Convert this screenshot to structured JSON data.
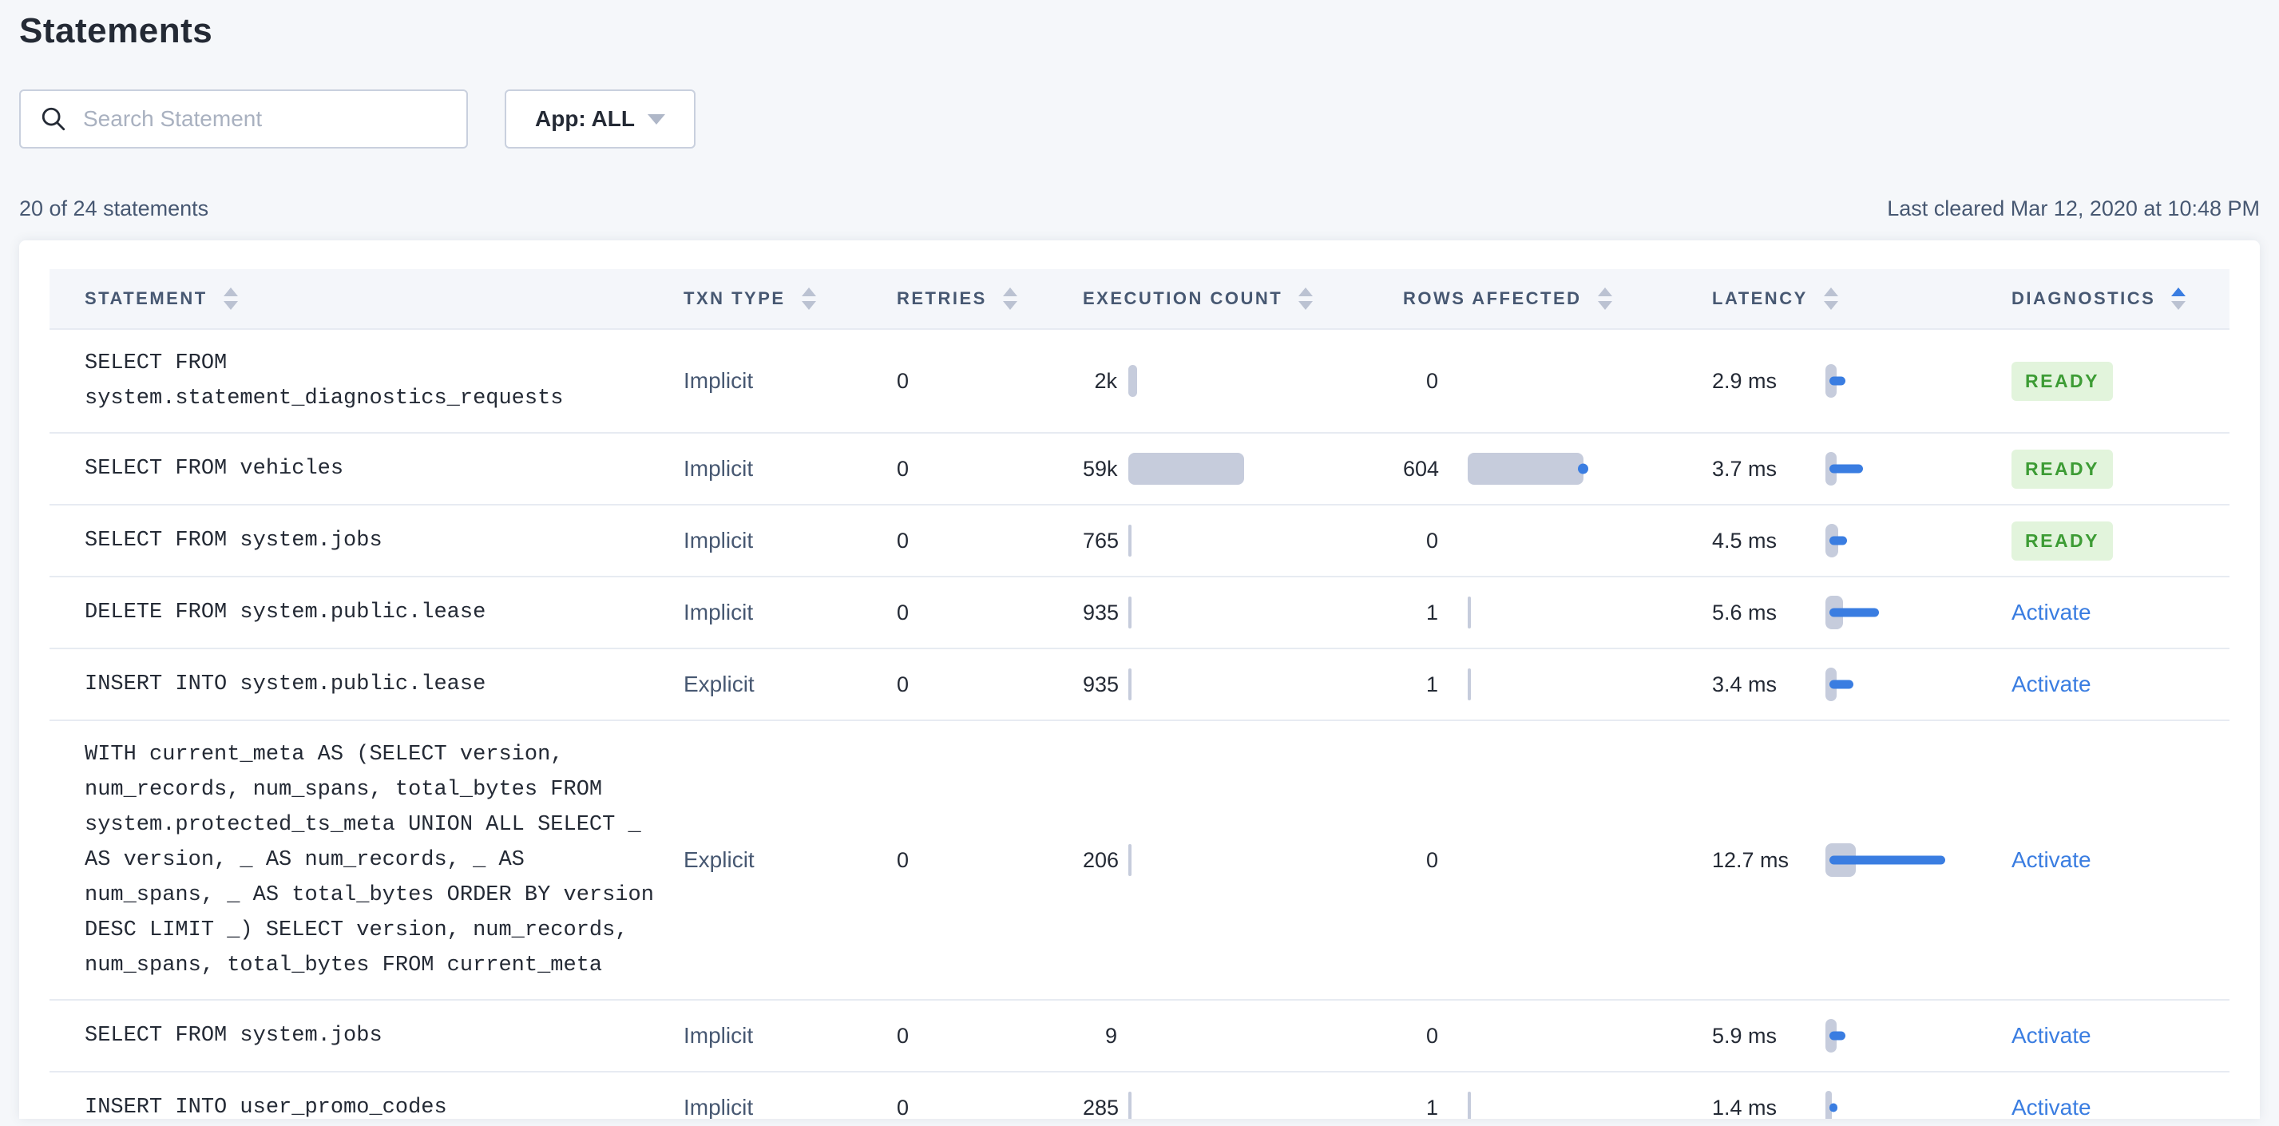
{
  "page": {
    "title": "Statements",
    "summary": "20 of 24 statements",
    "last_cleared": "Last cleared Mar 12, 2020 at 10:48 PM"
  },
  "search": {
    "placeholder": "Search Statement",
    "value": ""
  },
  "app_filter": {
    "label": "App: ALL"
  },
  "colors": {
    "accent_blue": "#3A7DE1",
    "bar_gray": "#C6CCDC",
    "ready_text_green": "#3D9C35",
    "ready_bg_green": "#E2F4DC"
  },
  "table": {
    "columns": [
      {
        "label": "STATEMENT",
        "sort_active": false
      },
      {
        "label": "TXN TYPE",
        "sort_active": false
      },
      {
        "label": "RETRIES",
        "sort_active": false
      },
      {
        "label": "EXECUTION COUNT",
        "sort_active": false
      },
      {
        "label": "ROWS AFFECTED",
        "sort_active": false
      },
      {
        "label": "LATENCY",
        "sort_active": false
      },
      {
        "label": "DIAGNOSTICS",
        "sort_active": true
      }
    ],
    "rows": [
      {
        "statement": "SELECT FROM system.statement_diagnostics_requests",
        "txn_type": "Implicit",
        "retries": "0",
        "execution_count": "2k",
        "exec_bar_w": 11,
        "rows_affected": "0",
        "rows_bar_w": 0,
        "rows_dot": false,
        "latency": "2.9 ms",
        "lat_gray_w": 14,
        "lat_blue_w": 20,
        "diagnostics": "READY",
        "diag_type": "badge"
      },
      {
        "statement": "SELECT FROM vehicles",
        "txn_type": "Implicit",
        "retries": "0",
        "execution_count": "59k",
        "exec_bar_w": 145,
        "rows_affected": "604",
        "rows_bar_w": 145,
        "rows_dot": true,
        "latency": "3.7 ms",
        "lat_gray_w": 14,
        "lat_blue_w": 42,
        "diagnostics": "READY",
        "diag_type": "badge"
      },
      {
        "statement": "SELECT FROM system.jobs",
        "txn_type": "Implicit",
        "retries": "0",
        "execution_count": "765",
        "exec_bar_w": 4,
        "rows_affected": "0",
        "rows_bar_w": 0,
        "rows_dot": false,
        "latency": "4.5 ms",
        "lat_gray_w": 16,
        "lat_blue_w": 22,
        "diagnostics": "READY",
        "diag_type": "badge"
      },
      {
        "statement": "DELETE FROM system.public.lease",
        "txn_type": "Implicit",
        "retries": "0",
        "execution_count": "935",
        "exec_bar_w": 4,
        "rows_affected": "1",
        "rows_bar_w": 4,
        "rows_dot": false,
        "latency": "5.6 ms",
        "lat_gray_w": 22,
        "lat_blue_w": 62,
        "diagnostics": "Activate",
        "diag_type": "link"
      },
      {
        "statement": "INSERT INTO system.public.lease",
        "txn_type": "Explicit",
        "retries": "0",
        "execution_count": "935",
        "exec_bar_w": 4,
        "rows_affected": "1",
        "rows_bar_w": 4,
        "rows_dot": false,
        "latency": "3.4 ms",
        "lat_gray_w": 14,
        "lat_blue_w": 30,
        "diagnostics": "Activate",
        "diag_type": "link"
      },
      {
        "statement": "WITH current_meta AS (SELECT version, num_records, num_spans, total_bytes FROM system.protected_ts_meta UNION ALL SELECT _ AS version, _ AS num_records, _ AS num_spans, _ AS total_bytes ORDER BY version DESC LIMIT _) SELECT version, num_records, num_spans, total_bytes FROM current_meta",
        "txn_type": "Explicit",
        "retries": "0",
        "execution_count": "206",
        "exec_bar_w": 4,
        "rows_affected": "0",
        "rows_bar_w": 0,
        "rows_dot": false,
        "latency": "12.7 ms",
        "lat_gray_w": 38,
        "lat_blue_w": 145,
        "diagnostics": "Activate",
        "diag_type": "link"
      },
      {
        "statement": "SELECT FROM system.jobs",
        "txn_type": "Implicit",
        "retries": "0",
        "execution_count": "9",
        "exec_bar_w": 0,
        "rows_affected": "0",
        "rows_bar_w": 0,
        "rows_dot": false,
        "latency": "5.9 ms",
        "lat_gray_w": 14,
        "lat_blue_w": 20,
        "diagnostics": "Activate",
        "diag_type": "link"
      },
      {
        "statement": "INSERT INTO user_promo_codes",
        "txn_type": "Implicit",
        "retries": "0",
        "execution_count": "285",
        "exec_bar_w": 4,
        "rows_affected": "1",
        "rows_bar_w": 4,
        "rows_dot": false,
        "latency": "1.4 ms",
        "lat_gray_w": 8,
        "lat_blue_w": 10,
        "diagnostics": "Activate",
        "diag_type": "link"
      }
    ]
  }
}
